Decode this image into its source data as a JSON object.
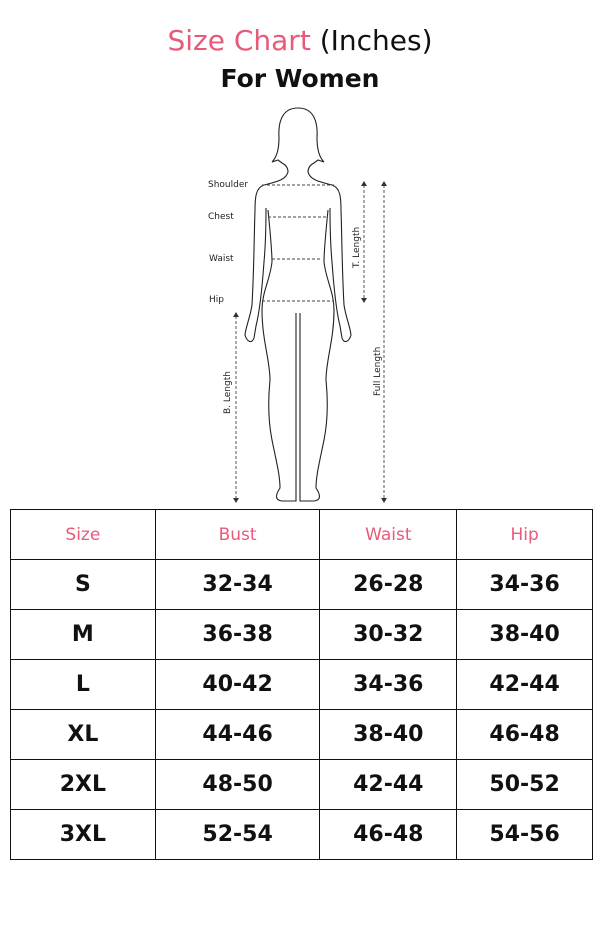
{
  "header": {
    "title_accent": "Size Chart",
    "title_rest": "(Inches)",
    "subtitle": "For Women"
  },
  "colors": {
    "accent": "#e85a79",
    "text": "#111111"
  },
  "figure": {
    "labels": {
      "shoulder": "Shoulder",
      "chest": "Chest",
      "waist": "Waist",
      "hip": "Hip",
      "t_length": "T. Length",
      "b_length": "B. Length",
      "full_length": "Full  Length"
    }
  },
  "table": {
    "headers": [
      "Size",
      "Bust",
      "Waist",
      "Hip"
    ],
    "rows": [
      [
        "S",
        "32-34",
        "26-28",
        "34-36"
      ],
      [
        "M",
        "36-38",
        "30-32",
        "38-40"
      ],
      [
        "L",
        "40-42",
        "34-36",
        "42-44"
      ],
      [
        "XL",
        "44-46",
        "38-40",
        "46-48"
      ],
      [
        "2XL",
        "48-50",
        "42-44",
        "50-52"
      ],
      [
        "3XL",
        "52-54",
        "46-48",
        "54-56"
      ]
    ]
  }
}
